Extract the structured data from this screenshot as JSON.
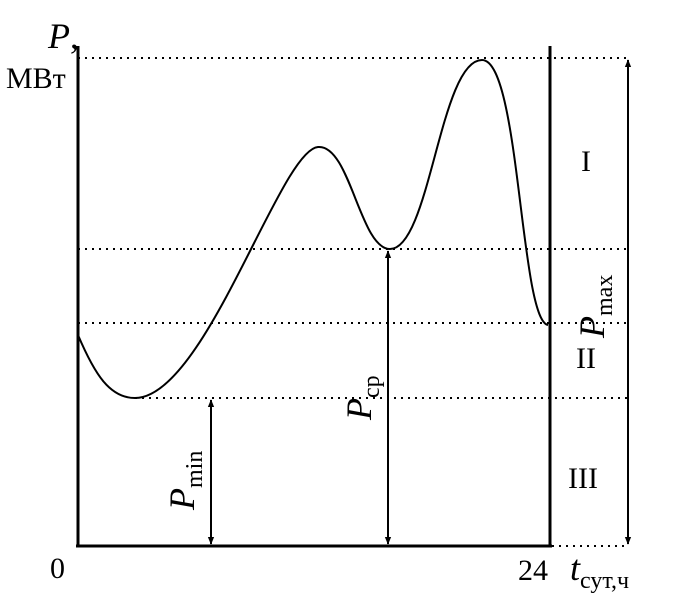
{
  "axes": {
    "y_label_var": "P",
    "y_label_comma": ",",
    "y_unit": "МВт",
    "x_label_var": "t",
    "x_label_sub": "сут,ч",
    "origin": "0",
    "x_end": "24"
  },
  "zones": {
    "top": "I",
    "middle": "II",
    "bottom": "III"
  },
  "levels": {
    "pmax_var": "P",
    "pmax_sub": "max",
    "pcp_var": "P",
    "pcp_sub": "ср",
    "pmin_var": "P",
    "pmin_sub": "min"
  }
}
